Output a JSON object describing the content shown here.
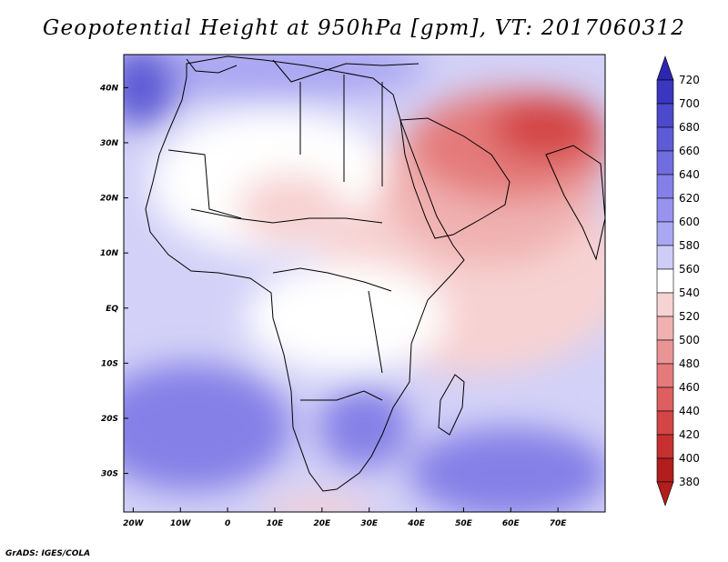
{
  "title": "Geopotential Height at 950hPa [gpm], VT: 2017060312",
  "footer": "GrADS: IGES/COLA",
  "chart_data": {
    "type": "heatmap",
    "variable": "Geopotential Height",
    "level": "950hPa",
    "units": "gpm",
    "valid_time": "2017060312",
    "lon_range": [
      -22,
      80
    ],
    "lat_range": [
      -37,
      46
    ],
    "x_ticks": [
      {
        "value": -20,
        "label": "20W"
      },
      {
        "value": -10,
        "label": "10W"
      },
      {
        "value": 0,
        "label": "0"
      },
      {
        "value": 10,
        "label": "10E"
      },
      {
        "value": 20,
        "label": "20E"
      },
      {
        "value": 30,
        "label": "30E"
      },
      {
        "value": 40,
        "label": "40E"
      },
      {
        "value": 50,
        "label": "50E"
      },
      {
        "value": 60,
        "label": "60E"
      },
      {
        "value": 70,
        "label": "70E"
      }
    ],
    "y_ticks": [
      {
        "value": 40,
        "label": "40N"
      },
      {
        "value": 30,
        "label": "30N"
      },
      {
        "value": 20,
        "label": "20N"
      },
      {
        "value": 10,
        "label": "10N"
      },
      {
        "value": 0,
        "label": "EQ"
      },
      {
        "value": -10,
        "label": "10S"
      },
      {
        "value": -20,
        "label": "20S"
      },
      {
        "value": -30,
        "label": "30S"
      }
    ],
    "colorbar": {
      "levels": [
        720,
        700,
        680,
        660,
        640,
        620,
        600,
        580,
        560,
        540,
        520,
        500,
        480,
        460,
        440,
        420,
        400,
        380
      ],
      "colors": [
        "#2b27b0",
        "#3a36bf",
        "#4d49cc",
        "#5f5bd6",
        "#716ddf",
        "#8480e7",
        "#9793ee",
        "#aaa7f2",
        "#cfcdf7",
        "#ffffff",
        "#f7d2d2",
        "#f0b1b1",
        "#ea9595",
        "#e47a7a",
        "#dd5f5f",
        "#d44545",
        "#c63030",
        "#b01e1e"
      ]
    },
    "features": [
      {
        "name": "low over Arabia/Iran/Pakistan",
        "lon": 58,
        "lat": 28,
        "value": 440
      },
      {
        "name": "high over Iberian Atlantic",
        "lon": -20,
        "lat": 40,
        "value": 680
      },
      {
        "name": "South Atlantic high",
        "lon": -10,
        "lat": -28,
        "value": 640
      },
      {
        "name": "South Indian Ocean high",
        "lon": 55,
        "lat": -32,
        "value": 640
      },
      {
        "name": "Sahara thermal low",
        "lon": 5,
        "lat": 20,
        "value": 520
      }
    ]
  }
}
